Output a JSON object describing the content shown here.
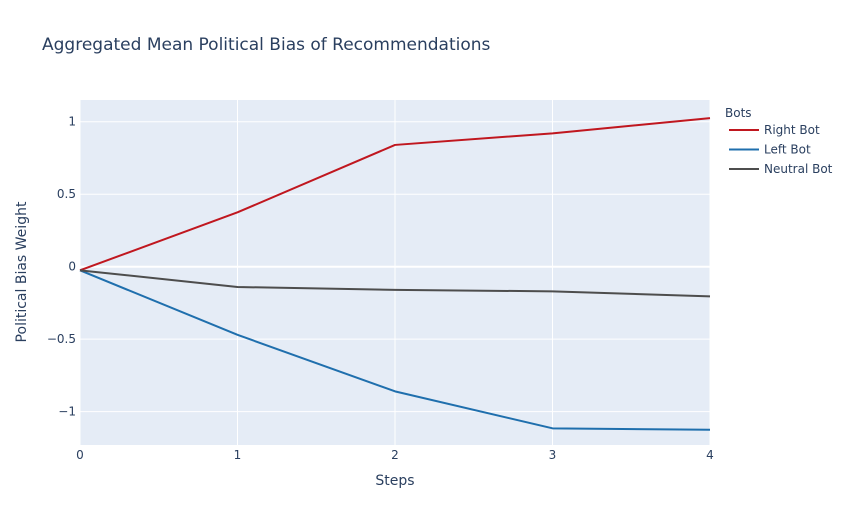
{
  "chart_data": {
    "type": "line",
    "title": "Aggregated Mean Political Bias of Recommendations",
    "xlabel": "Steps",
    "ylabel": "Political Bias Weight",
    "x": [
      0,
      1,
      2,
      3,
      4
    ],
    "x_ticks": [
      "0",
      "1",
      "2",
      "3",
      "4"
    ],
    "y_ticks": [
      {
        "value": 1,
        "label": "1"
      },
      {
        "value": 0.5,
        "label": "0.5"
      },
      {
        "value": 0,
        "label": "0"
      },
      {
        "value": -0.5,
        "label": "−0.5"
      },
      {
        "value": -1,
        "label": "−1"
      }
    ],
    "xlim": [
      0,
      4
    ],
    "ylim": [
      -1.23,
      1.15
    ],
    "grid": true,
    "legend": {
      "title": "Bots",
      "placement": "top-right"
    },
    "series": [
      {
        "name": "Right Bot",
        "color": "#c0171f",
        "values": [
          -0.025,
          0.375,
          0.84,
          0.92,
          1.025
        ]
      },
      {
        "name": "Left Bot",
        "color": "#1f6fad",
        "values": [
          -0.025,
          -0.47,
          -0.86,
          -1.115,
          -1.125
        ]
      },
      {
        "name": "Neutral Bot",
        "color": "#4d4d4d",
        "values": [
          -0.025,
          -0.14,
          -0.16,
          -0.17,
          -0.205
        ]
      }
    ]
  }
}
